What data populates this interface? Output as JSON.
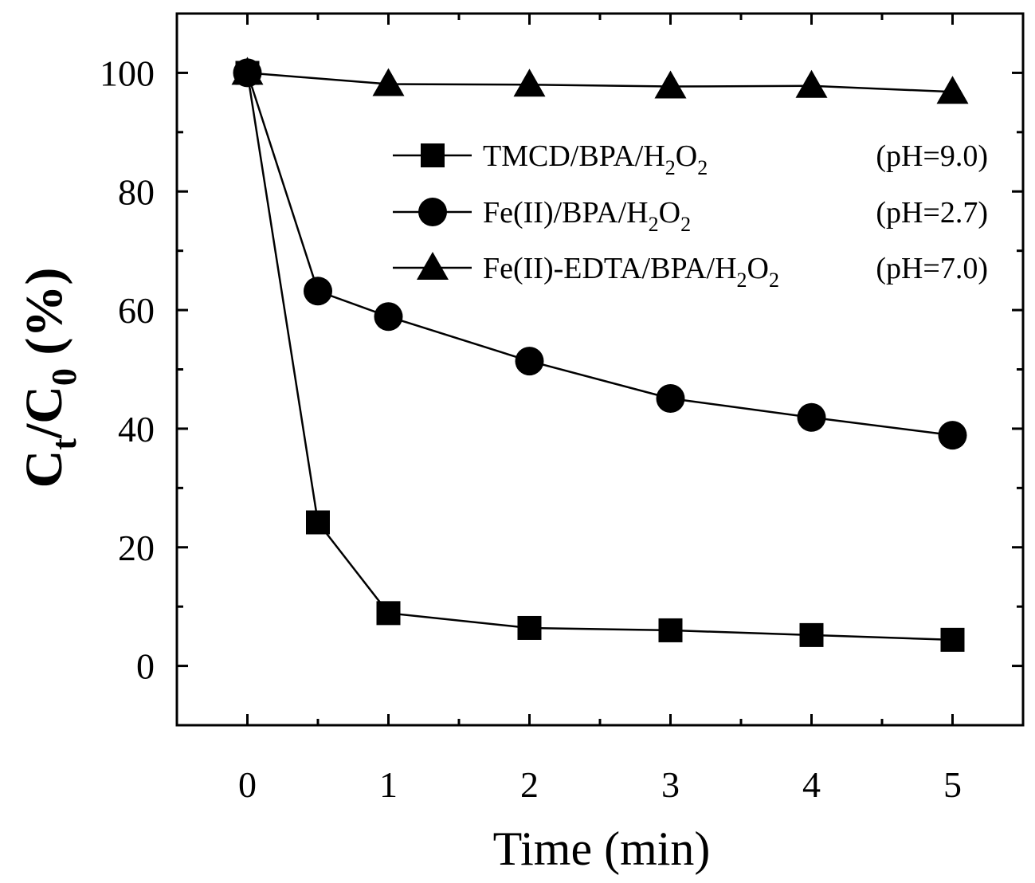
{
  "chart_data": {
    "type": "line",
    "title": "",
    "xlabel": "Time (min)",
    "ylabel": {
      "main": "C",
      "sub1": "t",
      "mid": "/C",
      "sub2": "0",
      "tail": " (%)"
    },
    "xlim": [
      -0.5,
      5.5
    ],
    "ylim": [
      -10,
      110
    ],
    "x_ticks": [
      0,
      1,
      2,
      3,
      4,
      5
    ],
    "x_tick_labels": [
      "0",
      "1",
      "2",
      "3",
      "4",
      "5"
    ],
    "y_ticks": [
      0,
      20,
      40,
      60,
      80,
      100
    ],
    "y_tick_labels": [
      "0",
      "20",
      "40",
      "60",
      "80",
      "100"
    ],
    "legend_position": "upper-right",
    "series": [
      {
        "name": "TMCD/BPA/H2O2",
        "legend": {
          "a": "TMCD/BPA/H",
          "sub_a": "2",
          "b": "O",
          "sub_b": "2",
          "ph": "(pH=9.0)"
        },
        "marker": "square",
        "x": [
          0,
          0.5,
          1,
          2,
          3,
          4,
          5
        ],
        "values": [
          100,
          24.2,
          8.9,
          6.4,
          6.0,
          5.2,
          4.4
        ]
      },
      {
        "name": "Fe(II)/BPA/H2O2",
        "legend": {
          "a": "Fe(II)/BPA/H",
          "sub_a": "2",
          "b": "O",
          "sub_b": "2",
          "ph": "(pH=2.7)"
        },
        "marker": "circle",
        "x": [
          0,
          0.5,
          1,
          2,
          3,
          4,
          5
        ],
        "values": [
          100,
          63.2,
          58.9,
          51.4,
          45.1,
          41.9,
          38.9
        ]
      },
      {
        "name": "Fe(II)-EDTA/BPA/H2O2",
        "legend": {
          "a": "Fe(II)-EDTA/BPA/H",
          "sub_a": "2",
          "b": "O",
          "sub_b": "2",
          "ph": "(pH=7.0)"
        },
        "marker": "triangle",
        "x": [
          0,
          1,
          2,
          3,
          4,
          5
        ],
        "values": [
          100,
          98.1,
          98.0,
          97.7,
          97.8,
          96.8
        ]
      }
    ]
  }
}
